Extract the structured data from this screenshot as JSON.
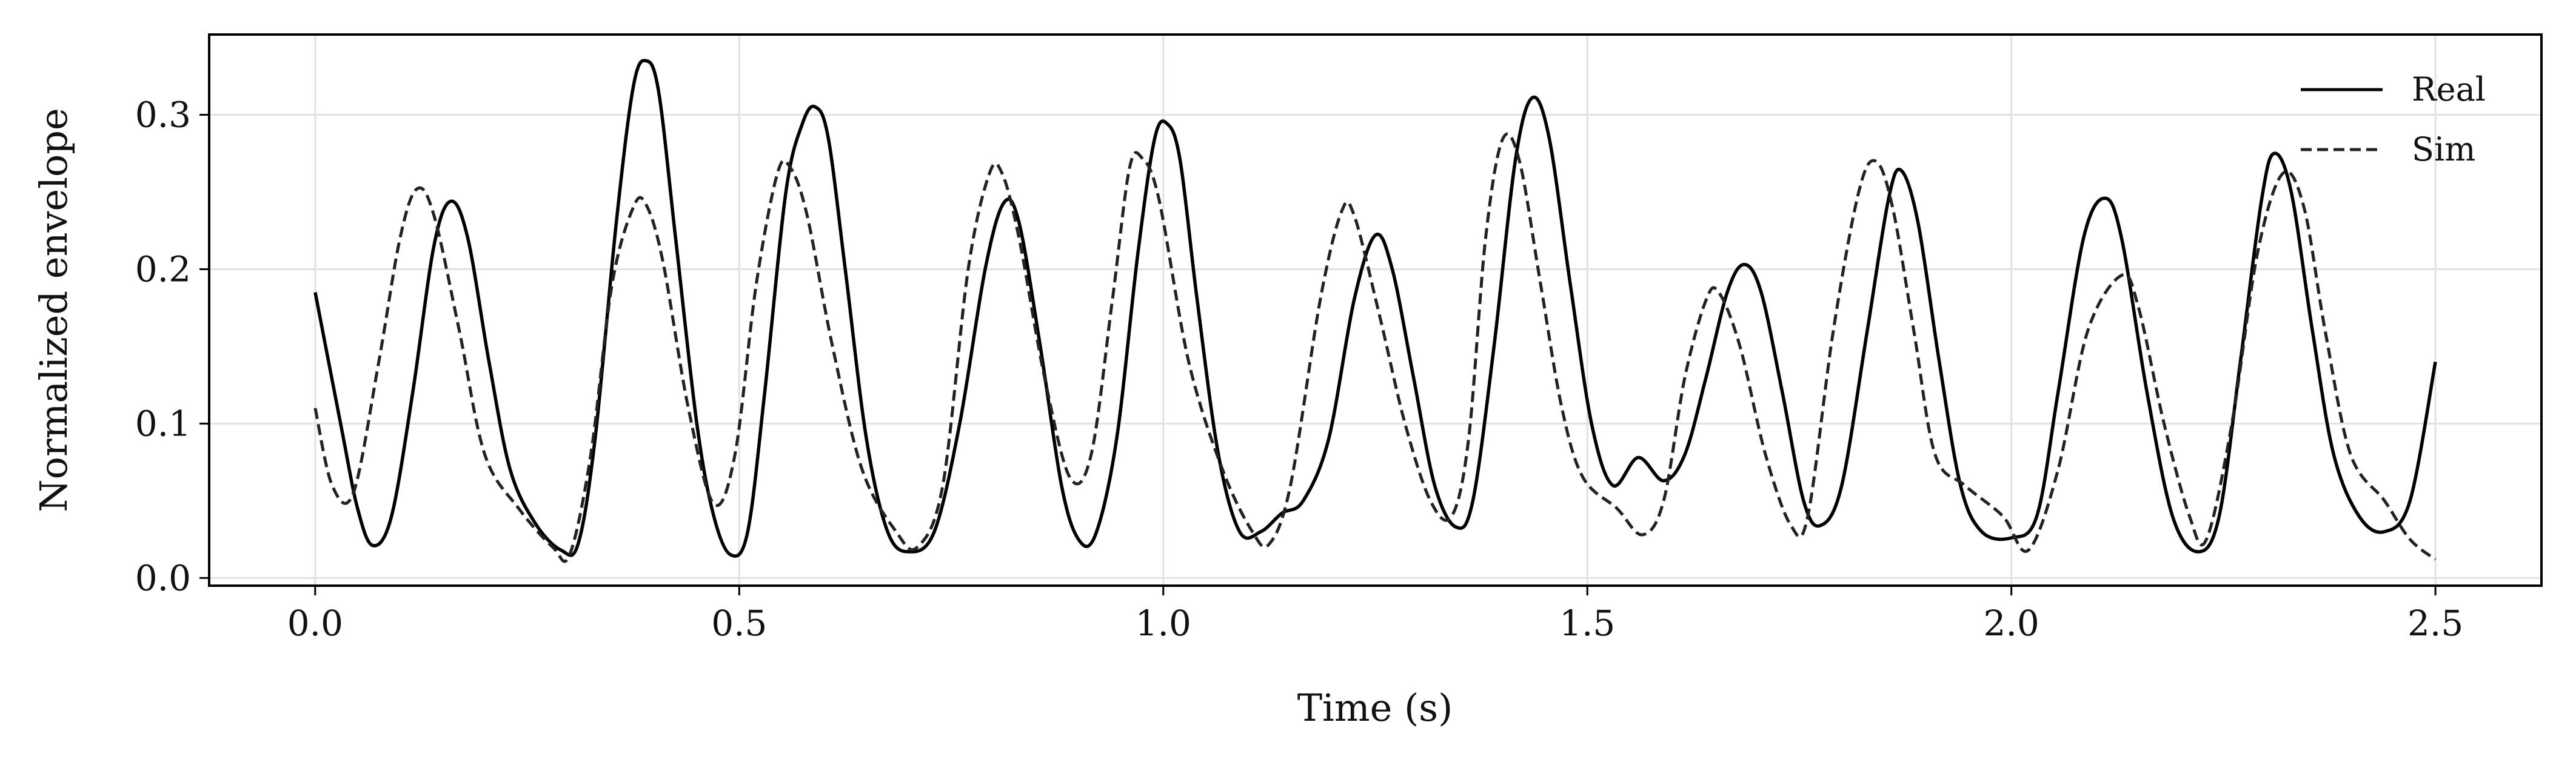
{
  "chart_data": {
    "type": "line",
    "title": "",
    "xlabel": "Time (s)",
    "ylabel": "Normalized envelope",
    "xlim": [
      -0.125,
      2.625
    ],
    "ylim": [
      -0.005,
      0.352
    ],
    "xticks": [
      0.0,
      0.5,
      1.0,
      1.5,
      2.0,
      2.5
    ],
    "xtick_labels": [
      "0.0",
      "0.5",
      "1.0",
      "1.5",
      "2.0",
      "2.5"
    ],
    "yticks": [
      0.0,
      0.1,
      0.2,
      0.3
    ],
    "ytick_labels": [
      "0.0",
      "0.1",
      "0.2",
      "0.3"
    ],
    "grid": true,
    "legend_position": "top-right",
    "series": [
      {
        "name": "Real",
        "style": "solid",
        "color": "#000000",
        "points": [
          [
            0.0,
            0.185
          ],
          [
            0.03,
            0.1
          ],
          [
            0.05,
            0.045
          ],
          [
            0.068,
            0.021
          ],
          [
            0.09,
            0.04
          ],
          [
            0.115,
            0.12
          ],
          [
            0.14,
            0.215
          ],
          [
            0.16,
            0.244
          ],
          [
            0.18,
            0.22
          ],
          [
            0.205,
            0.14
          ],
          [
            0.23,
            0.07
          ],
          [
            0.26,
            0.035
          ],
          [
            0.29,
            0.018
          ],
          [
            0.31,
            0.022
          ],
          [
            0.33,
            0.09
          ],
          [
            0.355,
            0.23
          ],
          [
            0.375,
            0.318
          ],
          [
            0.39,
            0.335
          ],
          [
            0.405,
            0.315
          ],
          [
            0.425,
            0.22
          ],
          [
            0.45,
            0.1
          ],
          [
            0.47,
            0.04
          ],
          [
            0.49,
            0.015
          ],
          [
            0.51,
            0.03
          ],
          [
            0.53,
            0.12
          ],
          [
            0.555,
            0.25
          ],
          [
            0.575,
            0.295
          ],
          [
            0.59,
            0.305
          ],
          [
            0.605,
            0.285
          ],
          [
            0.625,
            0.2
          ],
          [
            0.65,
            0.09
          ],
          [
            0.675,
            0.03
          ],
          [
            0.7,
            0.017
          ],
          [
            0.73,
            0.03
          ],
          [
            0.76,
            0.1
          ],
          [
            0.79,
            0.2
          ],
          [
            0.812,
            0.243
          ],
          [
            0.83,
            0.23
          ],
          [
            0.855,
            0.15
          ],
          [
            0.88,
            0.06
          ],
          [
            0.9,
            0.025
          ],
          [
            0.92,
            0.028
          ],
          [
            0.945,
            0.09
          ],
          [
            0.97,
            0.21
          ],
          [
            0.99,
            0.285
          ],
          [
            1.005,
            0.294
          ],
          [
            1.02,
            0.27
          ],
          [
            1.04,
            0.18
          ],
          [
            1.065,
            0.08
          ],
          [
            1.09,
            0.03
          ],
          [
            1.115,
            0.03
          ],
          [
            1.14,
            0.042
          ],
          [
            1.165,
            0.05
          ],
          [
            1.195,
            0.09
          ],
          [
            1.225,
            0.18
          ],
          [
            1.25,
            0.222
          ],
          [
            1.27,
            0.2
          ],
          [
            1.295,
            0.13
          ],
          [
            1.32,
            0.06
          ],
          [
            1.345,
            0.033
          ],
          [
            1.365,
            0.05
          ],
          [
            1.39,
            0.15
          ],
          [
            1.415,
            0.27
          ],
          [
            1.435,
            0.311
          ],
          [
            1.455,
            0.285
          ],
          [
            1.48,
            0.19
          ],
          [
            1.505,
            0.1
          ],
          [
            1.53,
            0.06
          ],
          [
            1.56,
            0.078
          ],
          [
            1.59,
            0.063
          ],
          [
            1.615,
            0.08
          ],
          [
            1.64,
            0.13
          ],
          [
            1.665,
            0.185
          ],
          [
            1.685,
            0.203
          ],
          [
            1.705,
            0.185
          ],
          [
            1.73,
            0.12
          ],
          [
            1.755,
            0.05
          ],
          [
            1.775,
            0.034
          ],
          [
            1.8,
            0.06
          ],
          [
            1.83,
            0.16
          ],
          [
            1.855,
            0.245
          ],
          [
            1.87,
            0.264
          ],
          [
            1.89,
            0.23
          ],
          [
            1.915,
            0.14
          ],
          [
            1.94,
            0.06
          ],
          [
            1.965,
            0.03
          ],
          [
            2.0,
            0.026
          ],
          [
            2.03,
            0.04
          ],
          [
            2.055,
            0.12
          ],
          [
            2.085,
            0.22
          ],
          [
            2.11,
            0.246
          ],
          [
            2.13,
            0.22
          ],
          [
            2.16,
            0.12
          ],
          [
            2.19,
            0.04
          ],
          [
            2.22,
            0.017
          ],
          [
            2.245,
            0.04
          ],
          [
            2.27,
            0.14
          ],
          [
            2.295,
            0.245
          ],
          [
            2.31,
            0.275
          ],
          [
            2.33,
            0.25
          ],
          [
            2.355,
            0.16
          ],
          [
            2.38,
            0.08
          ],
          [
            2.41,
            0.04
          ],
          [
            2.44,
            0.03
          ],
          [
            2.47,
            0.05
          ],
          [
            2.5,
            0.14
          ]
        ]
      },
      {
        "name": "Sim",
        "style": "dashed",
        "color": "#222222",
        "points": [
          [
            0.0,
            0.11
          ],
          [
            0.02,
            0.06
          ],
          [
            0.045,
            0.055
          ],
          [
            0.075,
            0.14
          ],
          [
            0.1,
            0.22
          ],
          [
            0.12,
            0.252
          ],
          [
            0.14,
            0.235
          ],
          [
            0.17,
            0.16
          ],
          [
            0.2,
            0.08
          ],
          [
            0.24,
            0.045
          ],
          [
            0.28,
            0.02
          ],
          [
            0.3,
            0.015
          ],
          [
            0.325,
            0.08
          ],
          [
            0.35,
            0.19
          ],
          [
            0.375,
            0.24
          ],
          [
            0.39,
            0.242
          ],
          [
            0.41,
            0.205
          ],
          [
            0.44,
            0.11
          ],
          [
            0.47,
            0.048
          ],
          [
            0.495,
            0.08
          ],
          [
            0.52,
            0.19
          ],
          [
            0.545,
            0.262
          ],
          [
            0.56,
            0.266
          ],
          [
            0.58,
            0.235
          ],
          [
            0.61,
            0.15
          ],
          [
            0.645,
            0.07
          ],
          [
            0.685,
            0.03
          ],
          [
            0.71,
            0.02
          ],
          [
            0.74,
            0.06
          ],
          [
            0.77,
            0.2
          ],
          [
            0.795,
            0.262
          ],
          [
            0.81,
            0.262
          ],
          [
            0.83,
            0.22
          ],
          [
            0.86,
            0.13
          ],
          [
            0.89,
            0.065
          ],
          [
            0.915,
            0.08
          ],
          [
            0.94,
            0.18
          ],
          [
            0.96,
            0.265
          ],
          [
            0.975,
            0.272
          ],
          [
            0.995,
            0.245
          ],
          [
            1.03,
            0.14
          ],
          [
            1.07,
            0.07
          ],
          [
            1.105,
            0.03
          ],
          [
            1.125,
            0.022
          ],
          [
            1.15,
            0.06
          ],
          [
            1.185,
            0.18
          ],
          [
            1.21,
            0.237
          ],
          [
            1.225,
            0.235
          ],
          [
            1.255,
            0.17
          ],
          [
            1.285,
            0.1
          ],
          [
            1.315,
            0.05
          ],
          [
            1.34,
            0.04
          ],
          [
            1.36,
            0.09
          ],
          [
            1.38,
            0.22
          ],
          [
            1.4,
            0.284
          ],
          [
            1.42,
            0.27
          ],
          [
            1.445,
            0.19
          ],
          [
            1.47,
            0.11
          ],
          [
            1.495,
            0.065
          ],
          [
            1.535,
            0.045
          ],
          [
            1.565,
            0.028
          ],
          [
            1.59,
            0.05
          ],
          [
            1.615,
            0.13
          ],
          [
            1.64,
            0.18
          ],
          [
            1.655,
            0.185
          ],
          [
            1.68,
            0.15
          ],
          [
            1.71,
            0.08
          ],
          [
            1.74,
            0.034
          ],
          [
            1.76,
            0.04
          ],
          [
            1.79,
            0.16
          ],
          [
            1.82,
            0.25
          ],
          [
            1.84,
            0.27
          ],
          [
            1.86,
            0.24
          ],
          [
            1.885,
            0.16
          ],
          [
            1.91,
            0.08
          ],
          [
            1.945,
            0.06
          ],
          [
            1.99,
            0.04
          ],
          [
            2.02,
            0.018
          ],
          [
            2.055,
            0.07
          ],
          [
            2.09,
            0.16
          ],
          [
            2.13,
            0.196
          ],
          [
            2.15,
            0.175
          ],
          [
            2.18,
            0.1
          ],
          [
            2.21,
            0.04
          ],
          [
            2.23,
            0.025
          ],
          [
            2.26,
            0.1
          ],
          [
            2.29,
            0.21
          ],
          [
            2.32,
            0.262
          ],
          [
            2.345,
            0.24
          ],
          [
            2.37,
            0.16
          ],
          [
            2.4,
            0.08
          ],
          [
            2.44,
            0.05
          ],
          [
            2.47,
            0.025
          ],
          [
            2.5,
            0.012
          ]
        ]
      }
    ]
  }
}
